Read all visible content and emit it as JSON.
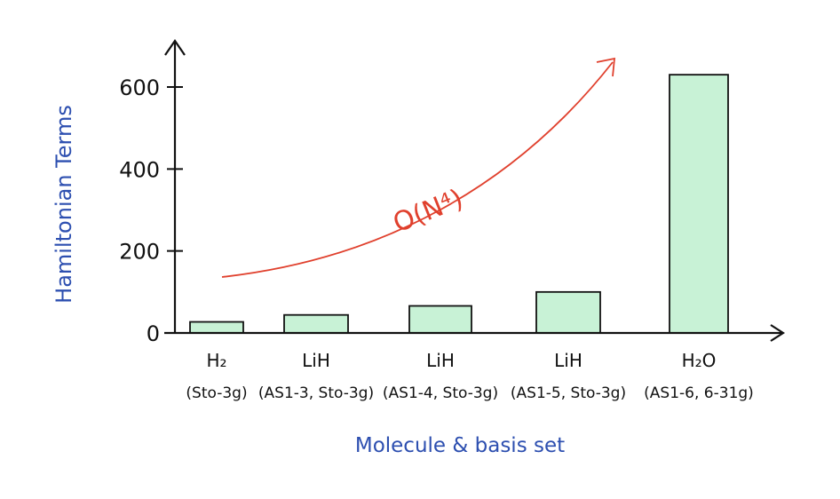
{
  "chart_data": {
    "type": "bar",
    "title": "",
    "xlabel": "Molecule & basis set",
    "ylabel": "Hamiltonian Terms",
    "ylim": [
      0,
      600
    ],
    "yticks": [
      "0",
      "200",
      "400",
      "600"
    ],
    "grid": false,
    "categories": [
      {
        "molecule": "H₂",
        "basis": "(Sto-3g)"
      },
      {
        "molecule": "LiH",
        "basis": "(AS1-3, Sto-3g)"
      },
      {
        "molecule": "LiH",
        "basis": "(AS1-4, Sto-3g)"
      },
      {
        "molecule": "LiH",
        "basis": "(AS1-5, Sto-3g)"
      },
      {
        "molecule": "H₂O",
        "basis": "(AS1-6, 6-31g)"
      }
    ],
    "values": [
      27,
      44,
      66,
      100,
      630
    ],
    "annotation": "O(N⁴)",
    "colors": {
      "bar_fill": "#c8f2d6",
      "bar_stroke": "#111111",
      "axis": "#111111",
      "axis_label": "#2d4fb0",
      "trend": "#e0402d"
    }
  }
}
